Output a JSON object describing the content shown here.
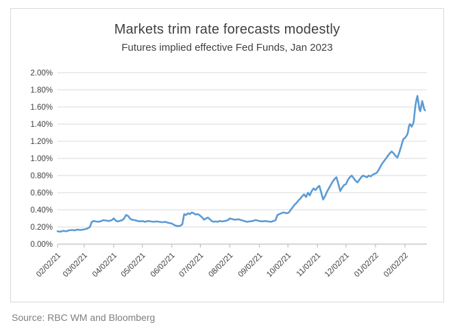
{
  "chart": {
    "title": "Markets trim rate forecasts modestly",
    "subtitle": "Futures implied effective Fed Funds, Jan 2023"
  },
  "source": {
    "label": "Source: RBC WM and Bloomberg"
  },
  "chart_data": {
    "type": "line",
    "title": "Markets trim rate forecasts modestly",
    "subtitle": "Futures implied effective Fed Funds, Jan 2023",
    "series_name": "Futures implied effective Fed Funds rate, Jan 2023 contract",
    "line_color": "#5B9BD5",
    "grid_color": "#d9d9d9",
    "axis_color": "#bfbfbf",
    "tick_label_color": "#404040",
    "ylim": [
      0,
      2
    ],
    "y_tick_values": [
      0,
      0.2,
      0.4,
      0.6,
      0.8,
      1.0,
      1.2,
      1.4,
      1.6,
      1.8,
      2.0
    ],
    "y_tick_labels": [
      "0.00%",
      "0.20%",
      "0.40%",
      "0.60%",
      "0.80%",
      "1.00%",
      "1.20%",
      "1.40%",
      "1.60%",
      "1.80%",
      "2.00%"
    ],
    "x_domain_days": [
      0,
      388
    ],
    "x_tick_days": [
      0,
      28,
      59,
      89,
      120,
      150,
      181,
      212,
      242,
      273,
      303,
      334,
      365
    ],
    "x_tick_labels": [
      "02/02/21",
      "03/02/21",
      "04/02/21",
      "05/02/21",
      "06/02/21",
      "07/02/21",
      "08/02/21",
      "09/02/21",
      "10/02/21",
      "11/02/21",
      "12/02/21",
      "01/02/22",
      "02/02/22"
    ],
    "grid": true,
    "legend": "none",
    "points": [
      [
        0,
        0.15
      ],
      [
        3,
        0.145
      ],
      [
        6,
        0.155
      ],
      [
        9,
        0.15
      ],
      [
        12,
        0.16
      ],
      [
        15,
        0.165
      ],
      [
        18,
        0.16
      ],
      [
        21,
        0.17
      ],
      [
        24,
        0.165
      ],
      [
        27,
        0.17
      ],
      [
        29,
        0.175
      ],
      [
        31,
        0.18
      ],
      [
        34,
        0.2
      ],
      [
        36,
        0.26
      ],
      [
        38,
        0.27
      ],
      [
        40,
        0.265
      ],
      [
        43,
        0.26
      ],
      [
        46,
        0.27
      ],
      [
        48,
        0.28
      ],
      [
        51,
        0.275
      ],
      [
        54,
        0.27
      ],
      [
        57,
        0.28
      ],
      [
        59,
        0.3
      ],
      [
        61,
        0.275
      ],
      [
        63,
        0.265
      ],
      [
        65,
        0.27
      ],
      [
        68,
        0.28
      ],
      [
        70,
        0.3
      ],
      [
        72,
        0.34
      ],
      [
        74,
        0.33
      ],
      [
        76,
        0.3
      ],
      [
        78,
        0.285
      ],
      [
        81,
        0.28
      ],
      [
        84,
        0.27
      ],
      [
        87,
        0.265
      ],
      [
        89,
        0.27
      ],
      [
        92,
        0.26
      ],
      [
        95,
        0.27
      ],
      [
        98,
        0.265
      ],
      [
        101,
        0.26
      ],
      [
        104,
        0.265
      ],
      [
        107,
        0.26
      ],
      [
        110,
        0.255
      ],
      [
        113,
        0.26
      ],
      [
        116,
        0.25
      ],
      [
        118,
        0.245
      ],
      [
        120,
        0.24
      ],
      [
        123,
        0.22
      ],
      [
        126,
        0.21
      ],
      [
        129,
        0.215
      ],
      [
        131,
        0.23
      ],
      [
        133,
        0.35
      ],
      [
        135,
        0.34
      ],
      [
        137,
        0.36
      ],
      [
        139,
        0.35
      ],
      [
        141,
        0.37
      ],
      [
        143,
        0.36
      ],
      [
        145,
        0.345
      ],
      [
        147,
        0.35
      ],
      [
        149,
        0.34
      ],
      [
        150,
        0.33
      ],
      [
        152,
        0.31
      ],
      [
        154,
        0.285
      ],
      [
        156,
        0.3
      ],
      [
        158,
        0.31
      ],
      [
        160,
        0.29
      ],
      [
        162,
        0.27
      ],
      [
        164,
        0.26
      ],
      [
        166,
        0.265
      ],
      [
        168,
        0.26
      ],
      [
        170,
        0.27
      ],
      [
        173,
        0.265
      ],
      [
        176,
        0.27
      ],
      [
        179,
        0.28
      ],
      [
        181,
        0.3
      ],
      [
        184,
        0.29
      ],
      [
        187,
        0.285
      ],
      [
        190,
        0.29
      ],
      [
        193,
        0.28
      ],
      [
        196,
        0.27
      ],
      [
        199,
        0.26
      ],
      [
        202,
        0.265
      ],
      [
        205,
        0.27
      ],
      [
        208,
        0.28
      ],
      [
        210,
        0.275
      ],
      [
        212,
        0.27
      ],
      [
        215,
        0.265
      ],
      [
        218,
        0.27
      ],
      [
        221,
        0.265
      ],
      [
        224,
        0.26
      ],
      [
        227,
        0.27
      ],
      [
        229,
        0.28
      ],
      [
        231,
        0.34
      ],
      [
        233,
        0.35
      ],
      [
        235,
        0.36
      ],
      [
        237,
        0.37
      ],
      [
        239,
        0.365
      ],
      [
        241,
        0.36
      ],
      [
        243,
        0.37
      ],
      [
        245,
        0.4
      ],
      [
        247,
        0.43
      ],
      [
        249,
        0.46
      ],
      [
        251,
        0.48
      ],
      [
        253,
        0.51
      ],
      [
        255,
        0.53
      ],
      [
        257,
        0.56
      ],
      [
        259,
        0.58
      ],
      [
        261,
        0.55
      ],
      [
        263,
        0.6
      ],
      [
        265,
        0.57
      ],
      [
        267,
        0.62
      ],
      [
        269,
        0.65
      ],
      [
        271,
        0.63
      ],
      [
        273,
        0.66
      ],
      [
        275,
        0.68
      ],
      [
        277,
        0.6
      ],
      [
        279,
        0.52
      ],
      [
        281,
        0.56
      ],
      [
        283,
        0.61
      ],
      [
        285,
        0.65
      ],
      [
        287,
        0.69
      ],
      [
        289,
        0.73
      ],
      [
        291,
        0.76
      ],
      [
        293,
        0.78
      ],
      [
        295,
        0.7
      ],
      [
        297,
        0.62
      ],
      [
        299,
        0.66
      ],
      [
        301,
        0.69
      ],
      [
        303,
        0.7
      ],
      [
        305,
        0.75
      ],
      [
        307,
        0.78
      ],
      [
        309,
        0.8
      ],
      [
        311,
        0.77
      ],
      [
        313,
        0.74
      ],
      [
        315,
        0.72
      ],
      [
        317,
        0.75
      ],
      [
        319,
        0.78
      ],
      [
        321,
        0.8
      ],
      [
        323,
        0.79
      ],
      [
        325,
        0.78
      ],
      [
        327,
        0.8
      ],
      [
        329,
        0.79
      ],
      [
        331,
        0.81
      ],
      [
        333,
        0.82
      ],
      [
        335,
        0.83
      ],
      [
        337,
        0.86
      ],
      [
        339,
        0.9
      ],
      [
        341,
        0.94
      ],
      [
        343,
        0.97
      ],
      [
        345,
        1.0
      ],
      [
        347,
        1.03
      ],
      [
        349,
        1.06
      ],
      [
        351,
        1.08
      ],
      [
        353,
        1.06
      ],
      [
        355,
        1.03
      ],
      [
        357,
        1.01
      ],
      [
        359,
        1.07
      ],
      [
        361,
        1.14
      ],
      [
        363,
        1.22
      ],
      [
        365,
        1.24
      ],
      [
        367,
        1.27
      ],
      [
        368,
        1.3
      ],
      [
        369,
        1.37
      ],
      [
        370,
        1.4
      ],
      [
        371,
        1.39
      ],
      [
        372,
        1.37
      ],
      [
        374,
        1.42
      ],
      [
        375,
        1.52
      ],
      [
        376,
        1.62
      ],
      [
        377,
        1.68
      ],
      [
        378,
        1.73
      ],
      [
        379,
        1.66
      ],
      [
        380,
        1.58
      ],
      [
        381,
        1.55
      ],
      [
        382,
        1.61
      ],
      [
        383,
        1.67
      ],
      [
        384,
        1.63
      ],
      [
        385,
        1.58
      ],
      [
        386,
        1.56
      ]
    ]
  }
}
